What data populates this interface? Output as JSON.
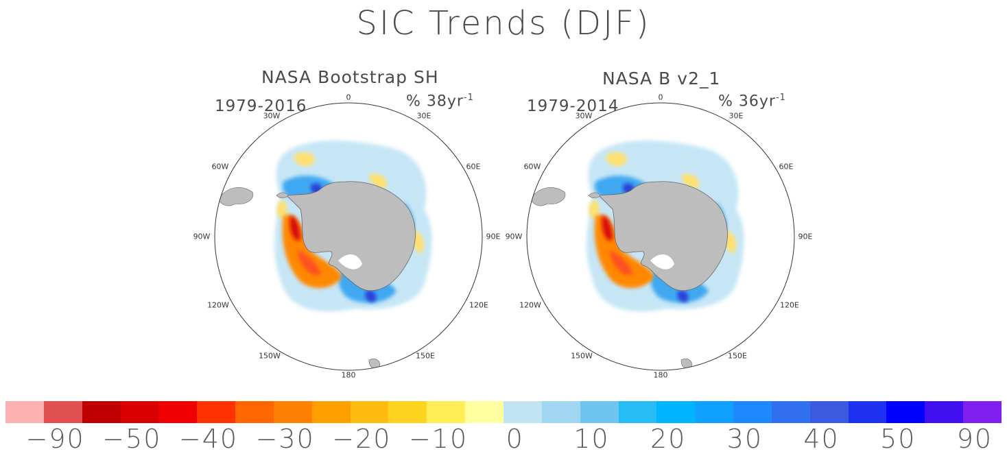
{
  "title": "SIC Trends (DJF)",
  "panels": [
    {
      "title": "NASA Bootstrap SH",
      "period": "1979-2016",
      "scale_prefix": "% 38yr",
      "scale_exp": "-1",
      "lon_labels": [
        "0",
        "30E",
        "60E",
        "90E",
        "120E",
        "150E",
        "180",
        "150W",
        "120W",
        "90W",
        "60W",
        "30W"
      ]
    },
    {
      "title": "NASA B v2_1",
      "period": "1979-2014",
      "scale_prefix": "% 36yr",
      "scale_exp": "-1",
      "lon_labels": [
        "0",
        "30E",
        "60E",
        "90E",
        "120E",
        "150E",
        "180",
        "150W",
        "120W",
        "90W",
        "60W",
        "30W"
      ]
    }
  ],
  "colorbar": {
    "colors": [
      "#fcb0b0",
      "#e05050",
      "#c00000",
      "#d80000",
      "#f00000",
      "#ff3300",
      "#ff6600",
      "#ff8000",
      "#ffa000",
      "#ffbb10",
      "#ffd420",
      "#ffee55",
      "#ffffa0",
      "#c0e4f4",
      "#a0d6f0",
      "#70c4f0",
      "#28bcf4",
      "#00b4ff",
      "#10a0ff",
      "#2088ff",
      "#3070f0",
      "#3a5ae0",
      "#1e30f0",
      "#0000ff",
      "#4010f0",
      "#8020f0"
    ],
    "labels": [
      "-90",
      "-50",
      "-40",
      "-30",
      "-20",
      "-10",
      "0",
      "10",
      "20",
      "30",
      "40",
      "50",
      "90"
    ]
  },
  "colors": {
    "land": "#bdbdbd",
    "border": "#333333",
    "decrease_strong": "#d81010",
    "decrease_mid": "#ff8800",
    "decrease_weak": "#ffe070",
    "increase_weak": "#c6e6f6",
    "increase_mid": "#40a8f0",
    "increase_strong": "#2a40d8"
  }
}
